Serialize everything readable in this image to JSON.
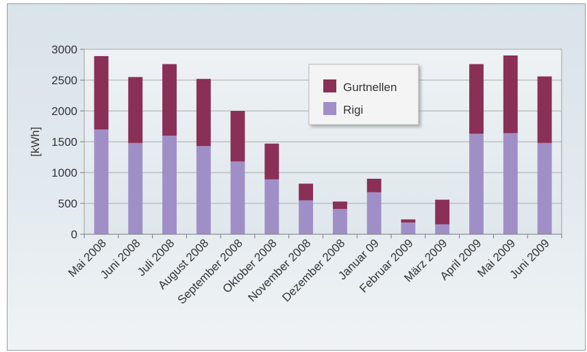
{
  "chart_data": {
    "type": "bar",
    "stacked": true,
    "title": "",
    "xlabel": "",
    "ylabel": "[kWh]",
    "ylim": [
      0,
      3000
    ],
    "yticks": [
      0,
      500,
      1000,
      1500,
      2000,
      2500,
      3000
    ],
    "grid": true,
    "legend_position": "top-center",
    "categories": [
      "Mai 2008",
      "Juni 2008",
      "Juli 2008",
      "August 2008",
      "September 2008",
      "Oktober 2008",
      "November 2008",
      "Dezember 2008",
      "Januar 09",
      "Februar 2009",
      "März 2009",
      "April 2009",
      "Mai 2009",
      "Juni 2009"
    ],
    "series": [
      {
        "name": "Rigi",
        "color": "#a08fc7",
        "values": [
          1700,
          1480,
          1600,
          1430,
          1180,
          890,
          550,
          410,
          680,
          190,
          160,
          1630,
          1640,
          1480
        ]
      },
      {
        "name": "Gurtnellen",
        "color": "#8a2f55",
        "values": [
          1190,
          1070,
          1160,
          1090,
          820,
          580,
          270,
          120,
          220,
          50,
          400,
          1130,
          1260,
          1080
        ]
      }
    ]
  }
}
